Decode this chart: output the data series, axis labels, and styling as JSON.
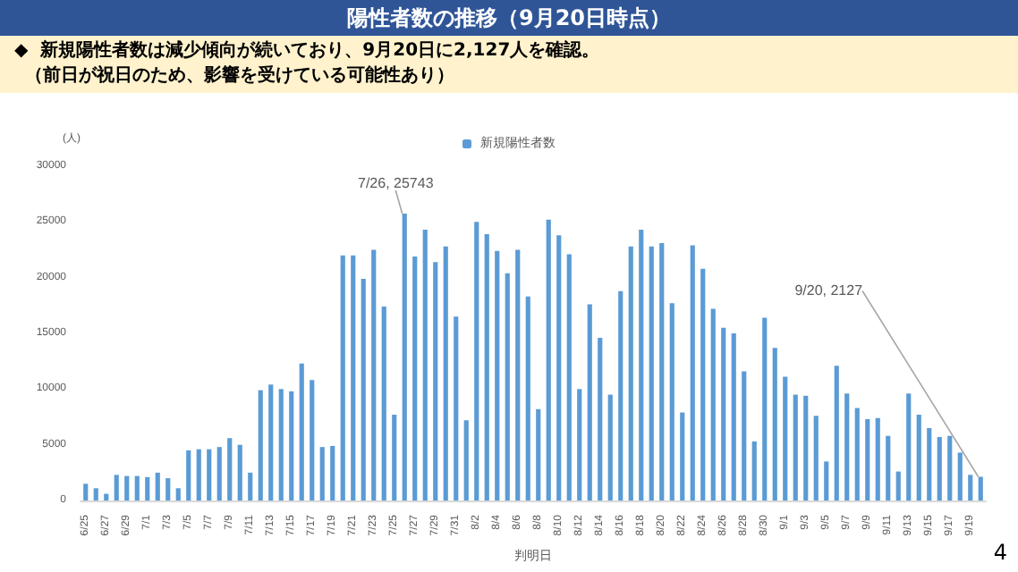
{
  "chart_data": {
    "type": "bar",
    "title": "陽性者数の推移（9月20日時点）",
    "subtitle": "◆  新規陽性者数は減少傾向が続いており、9月20日に2,127人を確認。",
    "xlabel": "判明日",
    "ylabel": "(人)",
    "annotations": [
      "（前日が祝日のため、影響を受けている可能性あり）",
      "4"
    ],
    "categories": [
      "6/25",
      null,
      "6/27",
      null,
      "6/29",
      null,
      "7/1",
      null,
      "7/3",
      null,
      "7/5",
      null,
      "7/7",
      null,
      "7/9",
      null,
      "7/11",
      null,
      "7/13",
      null,
      "7/15",
      null,
      "7/17",
      null,
      "7/19",
      null,
      "7/21",
      null,
      "7/23",
      null,
      "7/25",
      null,
      "7/27",
      null,
      "7/29",
      null,
      "7/31",
      null,
      "8/2",
      null,
      "8/4",
      null,
      "8/6",
      null,
      "8/8",
      null,
      "8/10",
      null,
      "8/12",
      null,
      "8/14",
      null,
      "8/16",
      null,
      "8/18",
      null,
      "8/20",
      null,
      "8/22",
      null,
      "8/24",
      null,
      "8/26",
      null,
      "8/28",
      null,
      "8/30",
      null,
      "9/1",
      null,
      "9/3",
      null,
      "9/5",
      null,
      "9/7",
      null,
      "9/9",
      null,
      "9/11",
      null,
      "9/13",
      null,
      "9/15",
      null,
      "9/17",
      null,
      "9/19",
      null
    ],
    "series": [
      {
        "name": "新規陽性者数",
        "color": "#5b9bd5",
        "values": [
          1500,
          1100,
          600,
          2300,
          2200,
          2200,
          2100,
          2500,
          2000,
          1100,
          4500,
          4600,
          4600,
          4800,
          5600,
          5000,
          2500,
          9900,
          10400,
          10000,
          9800,
          12300,
          10800,
          4800,
          4900,
          22000,
          22000,
          19900,
          22500,
          17400,
          7700,
          25743,
          21900,
          24300,
          21400,
          22800,
          16500,
          7200,
          25000,
          23900,
          22400,
          20400,
          22500,
          18300,
          8200,
          25200,
          23800,
          22100,
          10000,
          17600,
          14600,
          9500,
          18800,
          22800,
          24300,
          22800,
          23100,
          17700,
          7900,
          22900,
          20800,
          17200,
          15500,
          15000,
          11600,
          5300,
          16400,
          13700,
          11100,
          9500,
          9400,
          7600,
          3500,
          12100,
          9600,
          8300,
          7300,
          7400,
          5800,
          2600,
          9600,
          7700,
          6500,
          5700,
          5800,
          4300,
          2300,
          2127
        ],
        "value_labels": [
          null,
          null,
          null,
          null,
          null,
          null,
          null,
          null,
          null,
          null,
          null,
          null,
          null,
          null,
          null,
          null,
          null,
          null,
          null,
          null,
          null,
          null,
          null,
          null,
          null,
          null,
          null,
          null,
          null,
          null,
          null,
          "7/26, 25743",
          null,
          null,
          null,
          null,
          null,
          null,
          null,
          null,
          null,
          null,
          null,
          null,
          null,
          null,
          null,
          null,
          null,
          null,
          null,
          null,
          null,
          null,
          null,
          null,
          null,
          null,
          null,
          null,
          null,
          null,
          null,
          null,
          null,
          null,
          null,
          null,
          null,
          null,
          null,
          null,
          null,
          null,
          null,
          null,
          null,
          null,
          null,
          null,
          null,
          null,
          null,
          null,
          null,
          null,
          null,
          "9/20, 2127"
        ]
      }
    ],
    "ylim": [
      0,
      30000
    ],
    "yticks": [
      0,
      5000,
      10000,
      15000,
      20000,
      25000,
      30000
    ],
    "grid": false,
    "legend": "top"
  }
}
